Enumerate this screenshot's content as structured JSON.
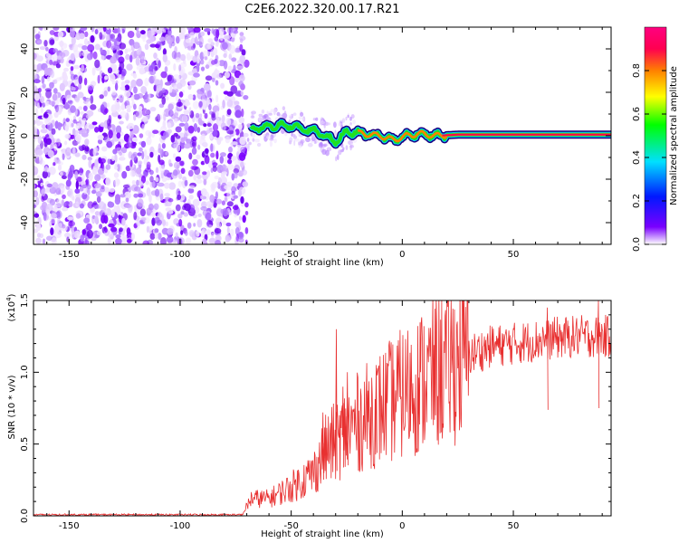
{
  "figure": {
    "title": "C2E6.2022.320.00.17.R21"
  },
  "chart_data": [
    {
      "type": "heatmap",
      "xlabel": "Height of straight line (km)",
      "ylabel": "Frequency (Hz)",
      "xlim": [
        -166,
        94
      ],
      "ylim": [
        -50,
        50
      ],
      "x_ticks": [
        -150,
        -100,
        -50,
        0,
        50
      ],
      "y_ticks": [
        -40,
        -20,
        0,
        20,
        40
      ],
      "noise_region_x": [
        -166,
        -70
      ],
      "signal_ridge": [
        {
          "x": -68,
          "y": 3
        },
        {
          "x": -60,
          "y": 4
        },
        {
          "x": -52,
          "y": 5
        },
        {
          "x": -45,
          "y": 3
        },
        {
          "x": -38,
          "y": 2
        },
        {
          "x": -30,
          "y": -3
        },
        {
          "x": -25,
          "y": 2
        },
        {
          "x": -18,
          "y": 1
        },
        {
          "x": -10,
          "y": 0
        },
        {
          "x": -4,
          "y": -2
        },
        {
          "x": 2,
          "y": 0
        },
        {
          "x": 8,
          "y": 1
        },
        {
          "x": 15,
          "y": 0
        },
        {
          "x": 25,
          "y": 0.5
        },
        {
          "x": 40,
          "y": 0.5
        },
        {
          "x": 60,
          "y": 0.5
        },
        {
          "x": 94,
          "y": 0.5
        }
      ],
      "colorbar": {
        "label": "Normalized spectral amplitude",
        "range": [
          0,
          1
        ],
        "ticks": [
          0.0,
          0.2,
          0.4,
          0.6,
          0.8
        ],
        "tick_labels": [
          "0.0",
          "0.2",
          "0.4",
          "0.6",
          "0.8"
        ],
        "colors": [
          "#ffffff",
          "#7a00ff",
          "#0018ff",
          "#00e0ff",
          "#00ff00",
          "#ffff00",
          "#ff8000",
          "#ff0050",
          "#ff0080"
        ]
      }
    },
    {
      "type": "line",
      "xlabel": "Height of straight line (km)",
      "ylabel": "SNR (10 * v/v)",
      "y_exponent_label": "(x10",
      "y_exponent_power": "4",
      "y_exponent_close": ")",
      "xlim": [
        -166,
        94
      ],
      "ylim": [
        0,
        1.5
      ],
      "x_ticks": [
        -150,
        -100,
        -50,
        0,
        50
      ],
      "y_ticks": [
        0.0,
        0.5,
        1.0,
        1.5
      ],
      "y_tick_labels": [
        "0.0",
        "0.5",
        "1.0",
        "1.5"
      ],
      "series": [
        {
          "color": "#e83030",
          "envelope": [
            {
              "x": -166,
              "y": 0.005
            },
            {
              "x": -72,
              "y": 0.01
            },
            {
              "x": -68,
              "y": 0.12
            },
            {
              "x": -60,
              "y": 0.12
            },
            {
              "x": -50,
              "y": 0.2
            },
            {
              "x": -40,
              "y": 0.3
            },
            {
              "x": -35,
              "y": 0.45
            },
            {
              "x": -28,
              "y": 0.55
            },
            {
              "x": -20,
              "y": 0.65
            },
            {
              "x": -10,
              "y": 0.75
            },
            {
              "x": 0,
              "y": 0.85
            },
            {
              "x": 10,
              "y": 0.95
            },
            {
              "x": 20,
              "y": 1.05
            },
            {
              "x": 30,
              "y": 1.12
            },
            {
              "x": 40,
              "y": 1.18
            },
            {
              "x": 50,
              "y": 1.2
            },
            {
              "x": 60,
              "y": 1.22
            },
            {
              "x": 70,
              "y": 1.24
            },
            {
              "x": 80,
              "y": 1.25
            },
            {
              "x": 94,
              "y": 1.25
            }
          ],
          "spikes": [
            {
              "x": -30,
              "y": 1.3
            },
            {
              "x": -27,
              "y": 0.9
            },
            {
              "x": -36,
              "y": 0.72
            },
            {
              "x": -25,
              "y": 1.0
            },
            {
              "x": -12,
              "y": 1.05
            },
            {
              "x": 88,
              "y": 1.5
            },
            {
              "x": 65,
              "y": 1.45
            }
          ]
        }
      ]
    }
  ]
}
